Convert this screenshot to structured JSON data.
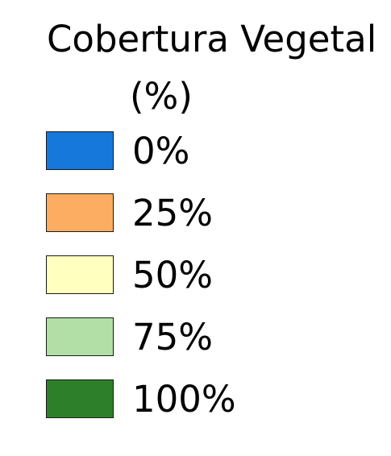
{
  "legend": {
    "title_line1": "Cobertura Vegetal",
    "title_line2": "(%)",
    "items": [
      {
        "label": "0%",
        "color": "#1678DB"
      },
      {
        "label": "25%",
        "color": "#FDAD61"
      },
      {
        "label": "50%",
        "color": "#FFFFBF"
      },
      {
        "label": "75%",
        "color": "#B1DFA5"
      },
      {
        "label": "100%",
        "color": "#2D8029"
      }
    ]
  }
}
